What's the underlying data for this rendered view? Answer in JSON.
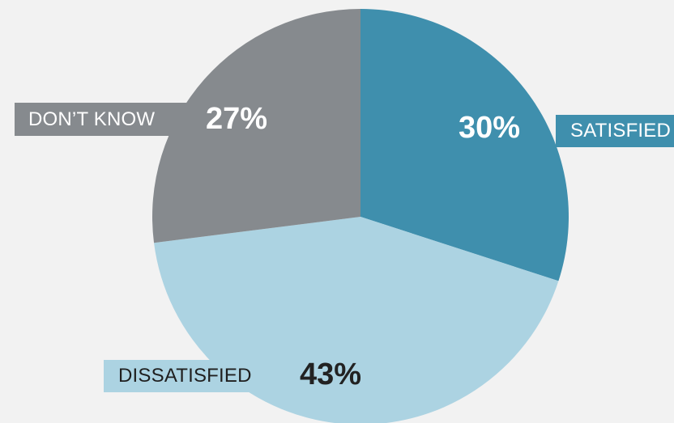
{
  "colors": {
    "background": "#f2f2f2",
    "satisfied": "#3f8fad",
    "dissatisfied": "#acd3e2",
    "dont_know": "#868a8e"
  },
  "chart_data": {
    "type": "pie",
    "title": "",
    "slices": [
      {
        "label": "SATISFIED",
        "value": 30,
        "value_label": "30%",
        "color": "#3f8fad"
      },
      {
        "label": "DISSATISFIED",
        "value": 43,
        "value_label": "43%",
        "color": "#acd3e2"
      },
      {
        "label": "DON’T KNOW",
        "value": 27,
        "value_label": "27%",
        "color": "#868a8e"
      }
    ]
  }
}
